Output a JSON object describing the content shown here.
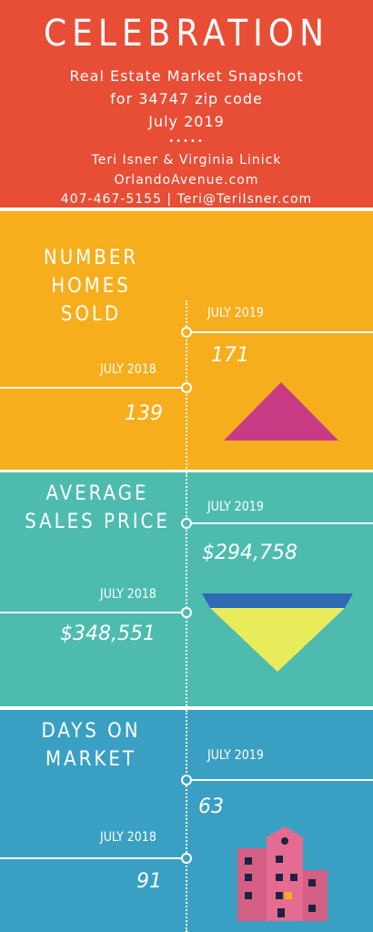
{
  "header": {
    "title": "CELEBRATION",
    "subtitle_line1": "Real Estate Market Snapshot",
    "subtitle_line2": "for 34747 zip code",
    "subtitle_line3": "July 2019",
    "dots": "•••••",
    "agents": "Teri Isner & Virginia Linick",
    "website": "OrlandoAvenue.com",
    "contact": "407-467-5155 | Teri@TeriIsner.com"
  },
  "colors": {
    "header_bg": "#e84d35",
    "homes_sold_bg": "#f6ae1d",
    "avg_price_bg": "#4dbcaf",
    "days_on_market_bg": "#3aa0c3",
    "triangle_up": "#c83a83",
    "funnel_blue": "#2e6bb5",
    "funnel_yellow": "#e9ec5a",
    "building_pink": "#e66b92"
  },
  "sections": {
    "homes_sold": {
      "title_line1": "NUMBER",
      "title_line2": "HOMES SOLD",
      "current_label": "JULY 2019",
      "current_value": "171",
      "prior_label": "JULY 2018",
      "prior_value": "139",
      "icon": "up-triangle-icon"
    },
    "avg_price": {
      "title_line1": "AVERAGE",
      "title_line2": "SALES PRICE",
      "current_label": "JULY 2019",
      "current_value": "$294,758",
      "prior_label": "JULY 2018",
      "prior_value": "$348,551",
      "icon": "down-funnel-icon"
    },
    "days_on_market": {
      "title_line1": "DAYS ON",
      "title_line2": "MARKET",
      "current_label": "JULY 2019",
      "current_value": "63",
      "prior_label": "JULY 2018",
      "prior_value": "91",
      "icon": "building-icon"
    }
  }
}
